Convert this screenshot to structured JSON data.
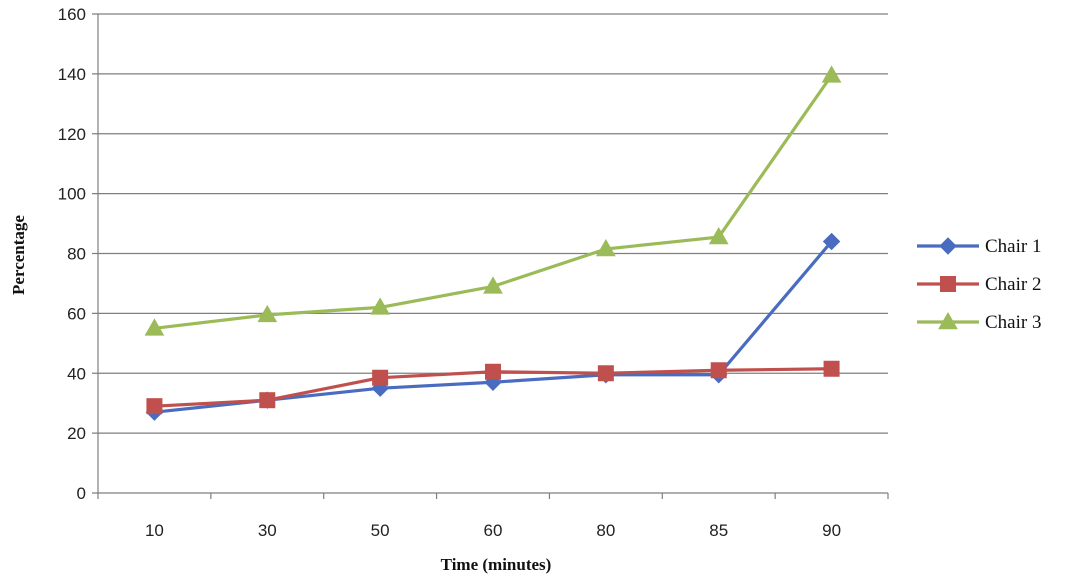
{
  "chart_data": {
    "type": "line",
    "title": "",
    "xlabel": "Time (minutes)",
    "ylabel": "Percentage",
    "categories": [
      "10",
      "30",
      "50",
      "60",
      "80",
      "85",
      "90"
    ],
    "ylim": [
      0,
      160
    ],
    "yticks": [
      0,
      20,
      40,
      60,
      80,
      100,
      120,
      140,
      160
    ],
    "grid": true,
    "legend_position": "right",
    "series": [
      {
        "name": "Chair 1",
        "marker": "diamond",
        "color": "#4a6cc0",
        "values": [
          27,
          31,
          35,
          37,
          39.5,
          39.5,
          84
        ]
      },
      {
        "name": "Chair 2",
        "marker": "square",
        "color": "#c0504d",
        "values": [
          29,
          31,
          38.5,
          40.5,
          40,
          41,
          41.5
        ]
      },
      {
        "name": "Chair 3",
        "marker": "triangle",
        "color": "#9bbb59",
        "values": [
          55,
          59.5,
          62,
          69,
          81.5,
          85.5,
          139.5
        ]
      }
    ]
  }
}
